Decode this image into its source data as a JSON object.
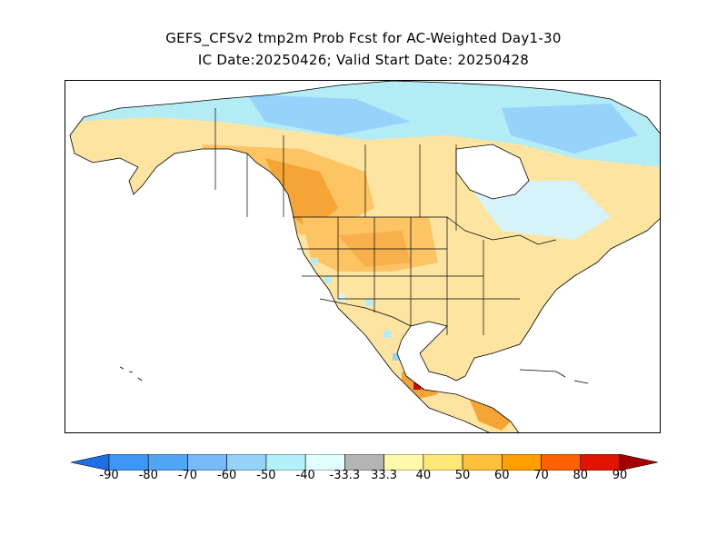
{
  "title": {
    "line1": "GEFS_CFSv2 tmp2m Prob Fcst for AC-Weighted Day1-30",
    "line2": "IC Date:20250426; Valid Start Date: 20250428"
  },
  "map": {
    "region": "North America",
    "variable": "tmp2m",
    "land_base_color": "#fde4a0",
    "ocean_color": "#ffffff",
    "regions": [
      {
        "name": "Arctic/Northern Canada",
        "category": "-40",
        "color": "#b4ecf5"
      },
      {
        "name": "Nunavut interior",
        "category": "-50",
        "color": "#96d2fa"
      },
      {
        "name": "Alaska interior",
        "category": "40",
        "color": "#fde4a0"
      },
      {
        "name": "Western Canada",
        "category": "50",
        "color": "#fcc463"
      },
      {
        "name": "Northern Rockies / Alberta",
        "category": "60",
        "color": "#f5a535"
      },
      {
        "name": "Northern Plains",
        "category": "50",
        "color": "#fcc463"
      },
      {
        "name": "Eastern US",
        "category": "40",
        "color": "#fde4a0"
      },
      {
        "name": "Hudson Bay",
        "category": "-40",
        "color": "#ffffff"
      },
      {
        "name": "Southwest Mexico coast",
        "category": "80",
        "color": "#e31a0c"
      },
      {
        "name": "Central America",
        "category": "60",
        "color": "#f5a535"
      }
    ]
  },
  "colorbar": {
    "left_arrow_color": "#1e6ee6",
    "right_arrow_color": "#a50000",
    "colors": [
      "#1e6ee6",
      "#3c96f5",
      "#50a5f5",
      "#78b9fa",
      "#96d2fa",
      "#b4f0fa",
      "#e1ffff",
      "#b4b4b4",
      "#fffaaa",
      "#ffe878",
      "#ffc03c",
      "#ffa000",
      "#ff6000",
      "#e11400",
      "#a50000"
    ],
    "labels": [
      "-90",
      "-80",
      "-70",
      "-60",
      "-50",
      "-40",
      "-33.3",
      "33.3",
      "40",
      "50",
      "60",
      "70",
      "80",
      "90"
    ]
  }
}
